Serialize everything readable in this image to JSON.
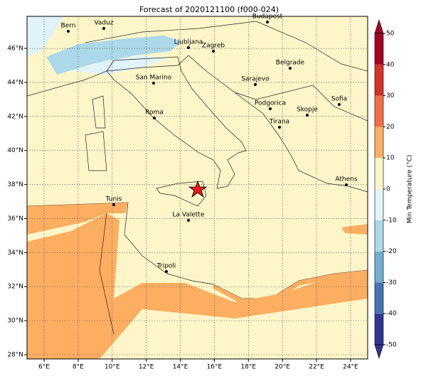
{
  "map": {
    "title": "Forecast of 2020121100 (f000-024)",
    "xticks": [
      {
        "value": 6,
        "label": "6°E"
      },
      {
        "value": 8,
        "label": "8°E"
      },
      {
        "value": 10,
        "label": "10°E"
      },
      {
        "value": 12,
        "label": "12°E"
      },
      {
        "value": 14,
        "label": "14°E"
      },
      {
        "value": 16,
        "label": "16°E"
      },
      {
        "value": 18,
        "label": "18°E"
      },
      {
        "value": 20,
        "label": "20°E"
      },
      {
        "value": 22,
        "label": "22°E"
      },
      {
        "value": 24,
        "label": "24°E"
      }
    ],
    "yticks": [
      {
        "value": 28,
        "label": "28°N"
      },
      {
        "value": 30,
        "label": "30°N"
      },
      {
        "value": 32,
        "label": "32°N"
      },
      {
        "value": 34,
        "label": "34°N"
      },
      {
        "value": 36,
        "label": "36°N"
      },
      {
        "value": 38,
        "label": "38°N"
      },
      {
        "value": 40,
        "label": "40°N"
      },
      {
        "value": 42,
        "label": "42°N"
      },
      {
        "value": 44,
        "label": "44°N"
      },
      {
        "value": 46,
        "label": "46°N"
      }
    ],
    "cities": [
      "Bern",
      "Vaduz",
      "Budapest",
      "Ljubljana",
      "Zagreb",
      "Belgrade",
      "San Marino",
      "Sarajevo",
      "Sofia",
      "Podgorica",
      "Skopje",
      "Roma",
      "Tirana",
      "Athens",
      "Tunis",
      "La Valette",
      "Tripoli"
    ],
    "colorbar": {
      "label": "Min Temperature (°C)",
      "ticks": [
        -50,
        -40,
        -30,
        -20,
        -10,
        0,
        10,
        20,
        30,
        40,
        50
      ],
      "colors": [
        "#313695",
        "#4575b4",
        "#74add1",
        "#abd9e9",
        "#e0f3f8",
        "#fef6c8",
        "#fdae61",
        "#f46d43",
        "#d73027",
        "#a50026"
      ]
    }
  }
}
